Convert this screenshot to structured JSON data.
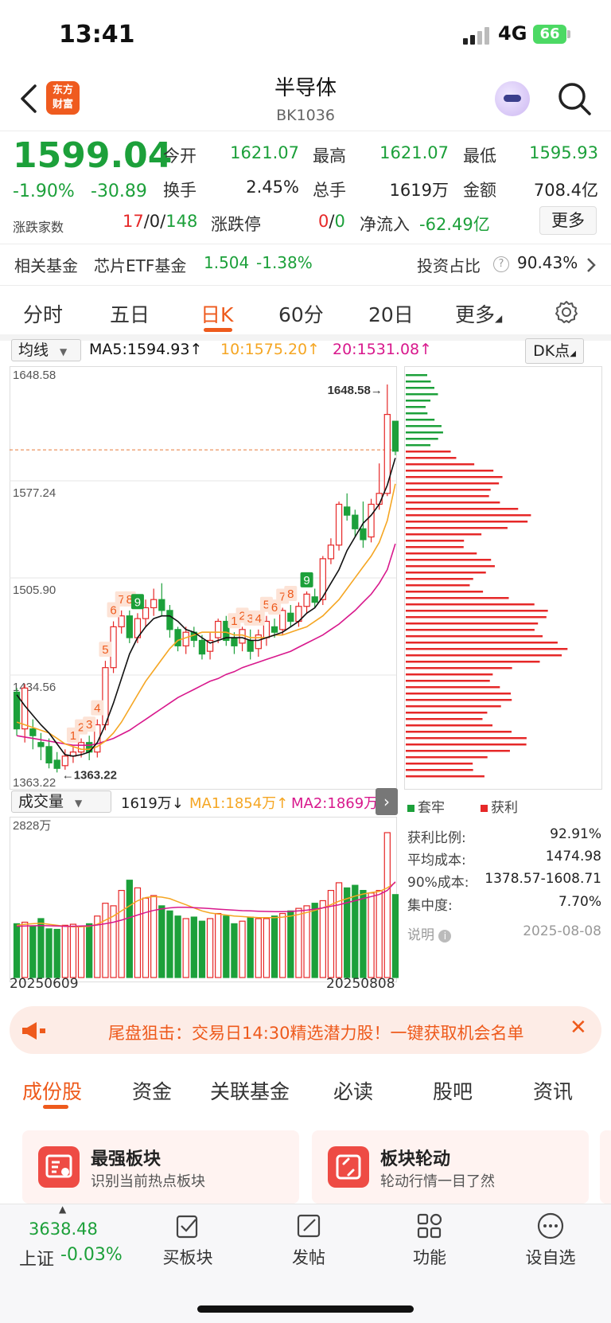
{
  "status": {
    "time": "13:41",
    "network": "4G",
    "battery": "66"
  },
  "nav": {
    "title": "半导体",
    "code": "BK1036",
    "logo": "东方财富"
  },
  "quote": {
    "price": "1599.04",
    "chg_pct": "-1.90%",
    "chg": "-30.89",
    "open_label": "今开",
    "open": "1621.07",
    "high_label": "最高",
    "high": "1621.07",
    "low_label": "最低",
    "low": "1595.93",
    "turnover_label": "换手",
    "turnover": "2.45%",
    "vol_label": "总手",
    "vol": "1619万",
    "amount_label": "金额",
    "amount": "708.4亿",
    "breadth_label": "涨跌家数",
    "breadth_up": "17",
    "breadth_flat": "/0/",
    "breadth_down": "148",
    "limit_label": "涨跌停",
    "limit_up": "0",
    "limit_sep": "/",
    "limit_down": "0",
    "inflow_label": "净流入",
    "inflow": "-62.49亿",
    "more": "更多"
  },
  "fund": {
    "label": "相关基金",
    "name": "芯片ETF基金",
    "price": "1.504",
    "chg": "-1.38%",
    "ratio_label": "投资占比",
    "ratio": "90.43%"
  },
  "ktabs": [
    "分时",
    "五日",
    "日K",
    "60分",
    "20日",
    "更多"
  ],
  "ma": {
    "select": "均线",
    "ma5": "MA5:1594.93↑",
    "ma10": "10:1575.20↑",
    "ma20": "20:1531.08↑",
    "dk": "DK点"
  },
  "vol_header": {
    "select": "成交量",
    "vol": "1619万↓",
    "ma1": "MA1:1854万↑",
    "ma2": "MA2:1869万"
  },
  "chart_data": {
    "type": "candlestick",
    "y_ticks": [
      "1648.58",
      "1577.24",
      "1505.90",
      "1434.56",
      "1363.22"
    ],
    "high_marker": "1648.58→",
    "low_marker": "←1363.22",
    "vol_max": "2828万",
    "dates": [
      "20250609",
      "20250808"
    ],
    "candles": [
      [
        1422,
        1395,
        1425,
        1390
      ],
      [
        1395,
        1425,
        1428,
        1385
      ],
      [
        1395,
        1390,
        1402,
        1380
      ],
      [
        1385,
        1382,
        1392,
        1372
      ],
      [
        1382,
        1370,
        1388,
        1366
      ],
      [
        1372,
        1366,
        1378,
        1363
      ],
      [
        1368,
        1375,
        1380,
        1365
      ],
      [
        1375,
        1378,
        1382,
        1370
      ],
      [
        1378,
        1385,
        1388,
        1374
      ],
      [
        1385,
        1378,
        1390,
        1372
      ],
      [
        1378,
        1398,
        1402,
        1374
      ],
      [
        1398,
        1440,
        1445,
        1394
      ],
      [
        1440,
        1470,
        1474,
        1436
      ],
      [
        1470,
        1478,
        1482,
        1465
      ],
      [
        1478,
        1462,
        1482,
        1458
      ],
      [
        1462,
        1476,
        1480,
        1458
      ],
      [
        1476,
        1484,
        1490,
        1470
      ],
      [
        1484,
        1490,
        1498,
        1478
      ],
      [
        1490,
        1482,
        1502,
        1478
      ],
      [
        1482,
        1468,
        1486,
        1462
      ],
      [
        1468,
        1456,
        1470,
        1452
      ],
      [
        1456,
        1466,
        1470,
        1450
      ],
      [
        1466,
        1460,
        1470,
        1455
      ],
      [
        1460,
        1450,
        1464,
        1446
      ],
      [
        1452,
        1460,
        1466,
        1446
      ],
      [
        1462,
        1474,
        1476,
        1458
      ],
      [
        1474,
        1460,
        1478,
        1456
      ],
      [
        1462,
        1456,
        1466,
        1450
      ],
      [
        1458,
        1468,
        1470,
        1452
      ],
      [
        1460,
        1452,
        1468,
        1446
      ],
      [
        1454,
        1464,
        1468,
        1448
      ],
      [
        1462,
        1474,
        1478,
        1456
      ],
      [
        1470,
        1466,
        1476,
        1462
      ],
      [
        1468,
        1482,
        1484,
        1464
      ],
      [
        1480,
        1474,
        1486,
        1470
      ],
      [
        1474,
        1485,
        1488,
        1470
      ],
      [
        1485,
        1494,
        1496,
        1480
      ],
      [
        1492,
        1488,
        1498,
        1484
      ],
      [
        1490,
        1520,
        1522,
        1486
      ],
      [
        1520,
        1530,
        1535,
        1516
      ],
      [
        1530,
        1560,
        1562,
        1526
      ],
      [
        1558,
        1552,
        1568,
        1548
      ],
      [
        1552,
        1542,
        1556,
        1536
      ],
      [
        1542,
        1534,
        1562,
        1528
      ],
      [
        1536,
        1560,
        1564,
        1532
      ],
      [
        1560,
        1568,
        1590,
        1556
      ],
      [
        1568,
        1626,
        1648,
        1566
      ],
      [
        1621,
        1599,
        1621,
        1596
      ]
    ],
    "ma5": [
      1420,
      1412,
      1405,
      1398,
      1392,
      1384,
      1376,
      1375,
      1376,
      1378,
      1385,
      1398,
      1414,
      1432,
      1450,
      1462,
      1470,
      1476,
      1478,
      1478,
      1474,
      1468,
      1466,
      1462,
      1458,
      1460,
      1462,
      1462,
      1462,
      1460,
      1460,
      1462,
      1464,
      1466,
      1470,
      1474,
      1480,
      1484,
      1492,
      1502,
      1512,
      1526,
      1536,
      1546,
      1552,
      1560,
      1574,
      1594
    ],
    "ma10": [
      1400,
      1398,
      1396,
      1394,
      1392,
      1388,
      1384,
      1382,
      1380,
      1380,
      1382,
      1386,
      1392,
      1400,
      1410,
      1420,
      1430,
      1438,
      1446,
      1454,
      1460,
      1462,
      1464,
      1466,
      1466,
      1466,
      1466,
      1464,
      1464,
      1462,
      1462,
      1462,
      1464,
      1464,
      1466,
      1468,
      1470,
      1474,
      1478,
      1484,
      1490,
      1498,
      1506,
      1514,
      1522,
      1532,
      1548,
      1575
    ],
    "ma20": [
      1390,
      1389,
      1388,
      1387,
      1386,
      1385,
      1384,
      1383,
      1383,
      1383,
      1384,
      1386,
      1388,
      1391,
      1394,
      1398,
      1402,
      1406,
      1410,
      1414,
      1418,
      1421,
      1424,
      1427,
      1430,
      1432,
      1435,
      1437,
      1440,
      1442,
      1444,
      1446,
      1448,
      1450,
      1452,
      1455,
      1458,
      1461,
      1464,
      1468,
      1472,
      1477,
      1482,
      1488,
      1494,
      1502,
      1512,
      1531
    ],
    "volumes": [
      1050,
      1080,
      1000,
      1150,
      950,
      940,
      1020,
      1040,
      1000,
      1050,
      1200,
      1450,
      1400,
      1700,
      1900,
      1750,
      1550,
      1600,
      1400,
      1300,
      1200,
      1150,
      1180,
      1100,
      1150,
      1250,
      1200,
      1050,
      1100,
      1180,
      1150,
      1150,
      1200,
      1250,
      1300,
      1350,
      1400,
      1450,
      1500,
      1700,
      1850,
      1750,
      1800,
      1700,
      1650,
      1700,
      2828,
      1619
    ],
    "volume_ma1": [
      1020,
      1040,
      1050,
      1060,
      1040,
      1020,
      1000,
      990,
      990,
      1000,
      1040,
      1120,
      1200,
      1300,
      1400,
      1500,
      1560,
      1580,
      1570,
      1540,
      1480,
      1420,
      1360,
      1300,
      1260,
      1240,
      1220,
      1200,
      1190,
      1180,
      1170,
      1170,
      1170,
      1180,
      1200,
      1230,
      1270,
      1310,
      1360,
      1420,
      1490,
      1540,
      1590,
      1630,
      1660,
      1680,
      1750,
      1854
    ],
    "volume_ma2": [
      1000,
      1005,
      1010,
      1015,
      1010,
      1005,
      1000,
      1000,
      1005,
      1010,
      1025,
      1050,
      1080,
      1120,
      1170,
      1220,
      1270,
      1310,
      1340,
      1360,
      1370,
      1370,
      1365,
      1355,
      1345,
      1335,
      1325,
      1315,
      1305,
      1300,
      1295,
      1290,
      1285,
      1285,
      1290,
      1300,
      1315,
      1335,
      1360,
      1390,
      1420,
      1460,
      1500,
      1540,
      1580,
      1620,
      1700,
      1869
    ],
    "sell_signals": [
      {
        "i": 7,
        "t": "1"
      },
      {
        "i": 8,
        "t": "2"
      },
      {
        "i": 9,
        "t": "3"
      },
      {
        "i": 10,
        "t": "4"
      },
      {
        "i": 11,
        "t": "5"
      },
      {
        "i": 12,
        "t": "6"
      },
      {
        "i": 13,
        "t": "7"
      },
      {
        "i": 14,
        "t": "8"
      },
      {
        "i": 15,
        "t": "9"
      },
      {
        "i": 27,
        "t": "1"
      },
      {
        "i": 28,
        "t": "2"
      },
      {
        "i": 29,
        "t": "3"
      },
      {
        "i": 30,
        "t": "4"
      },
      {
        "i": 31,
        "t": "5"
      },
      {
        "i": 32,
        "t": "6"
      },
      {
        "i": 33,
        "t": "7"
      },
      {
        "i": 34,
        "t": "8"
      },
      {
        "i": 36,
        "t": "9"
      }
    ]
  },
  "chips": {
    "legend_trapped": "套牢",
    "legend_profit": "获利",
    "items": [
      {
        "label": "获利比例:",
        "value": "92.91%"
      },
      {
        "label": "平均成本:",
        "value": "1474.98"
      },
      {
        "label": "90%成本:",
        "value": "1378.57-1608.71"
      },
      {
        "label": "集中度:",
        "value": "7.70%"
      }
    ],
    "note_label": "说明",
    "date": "2025-08-08"
  },
  "banner": {
    "text": "尾盘狙击：交易日14:30精选潜力股！一键获取机会名单"
  },
  "btabs": [
    "成份股",
    "资金",
    "关联基金",
    "必读",
    "股吧",
    "资讯"
  ],
  "cards": [
    {
      "title": "最强板块",
      "sub": "识别当前热点板块"
    },
    {
      "title": "板块轮动",
      "sub": "轮动行情一目了然"
    }
  ],
  "bottom": {
    "index_value": "3638.48",
    "index_name": "上证",
    "index_chg": "-0.03%",
    "buy": "买板块",
    "post": "发帖",
    "func": "功能",
    "watch": "设自选"
  },
  "colors": {
    "up": "#e62828",
    "down": "#1ca03a",
    "accent": "#ee5a1c",
    "ma5": "#111111",
    "ma10": "#f5a623",
    "ma20": "#d8188c"
  }
}
